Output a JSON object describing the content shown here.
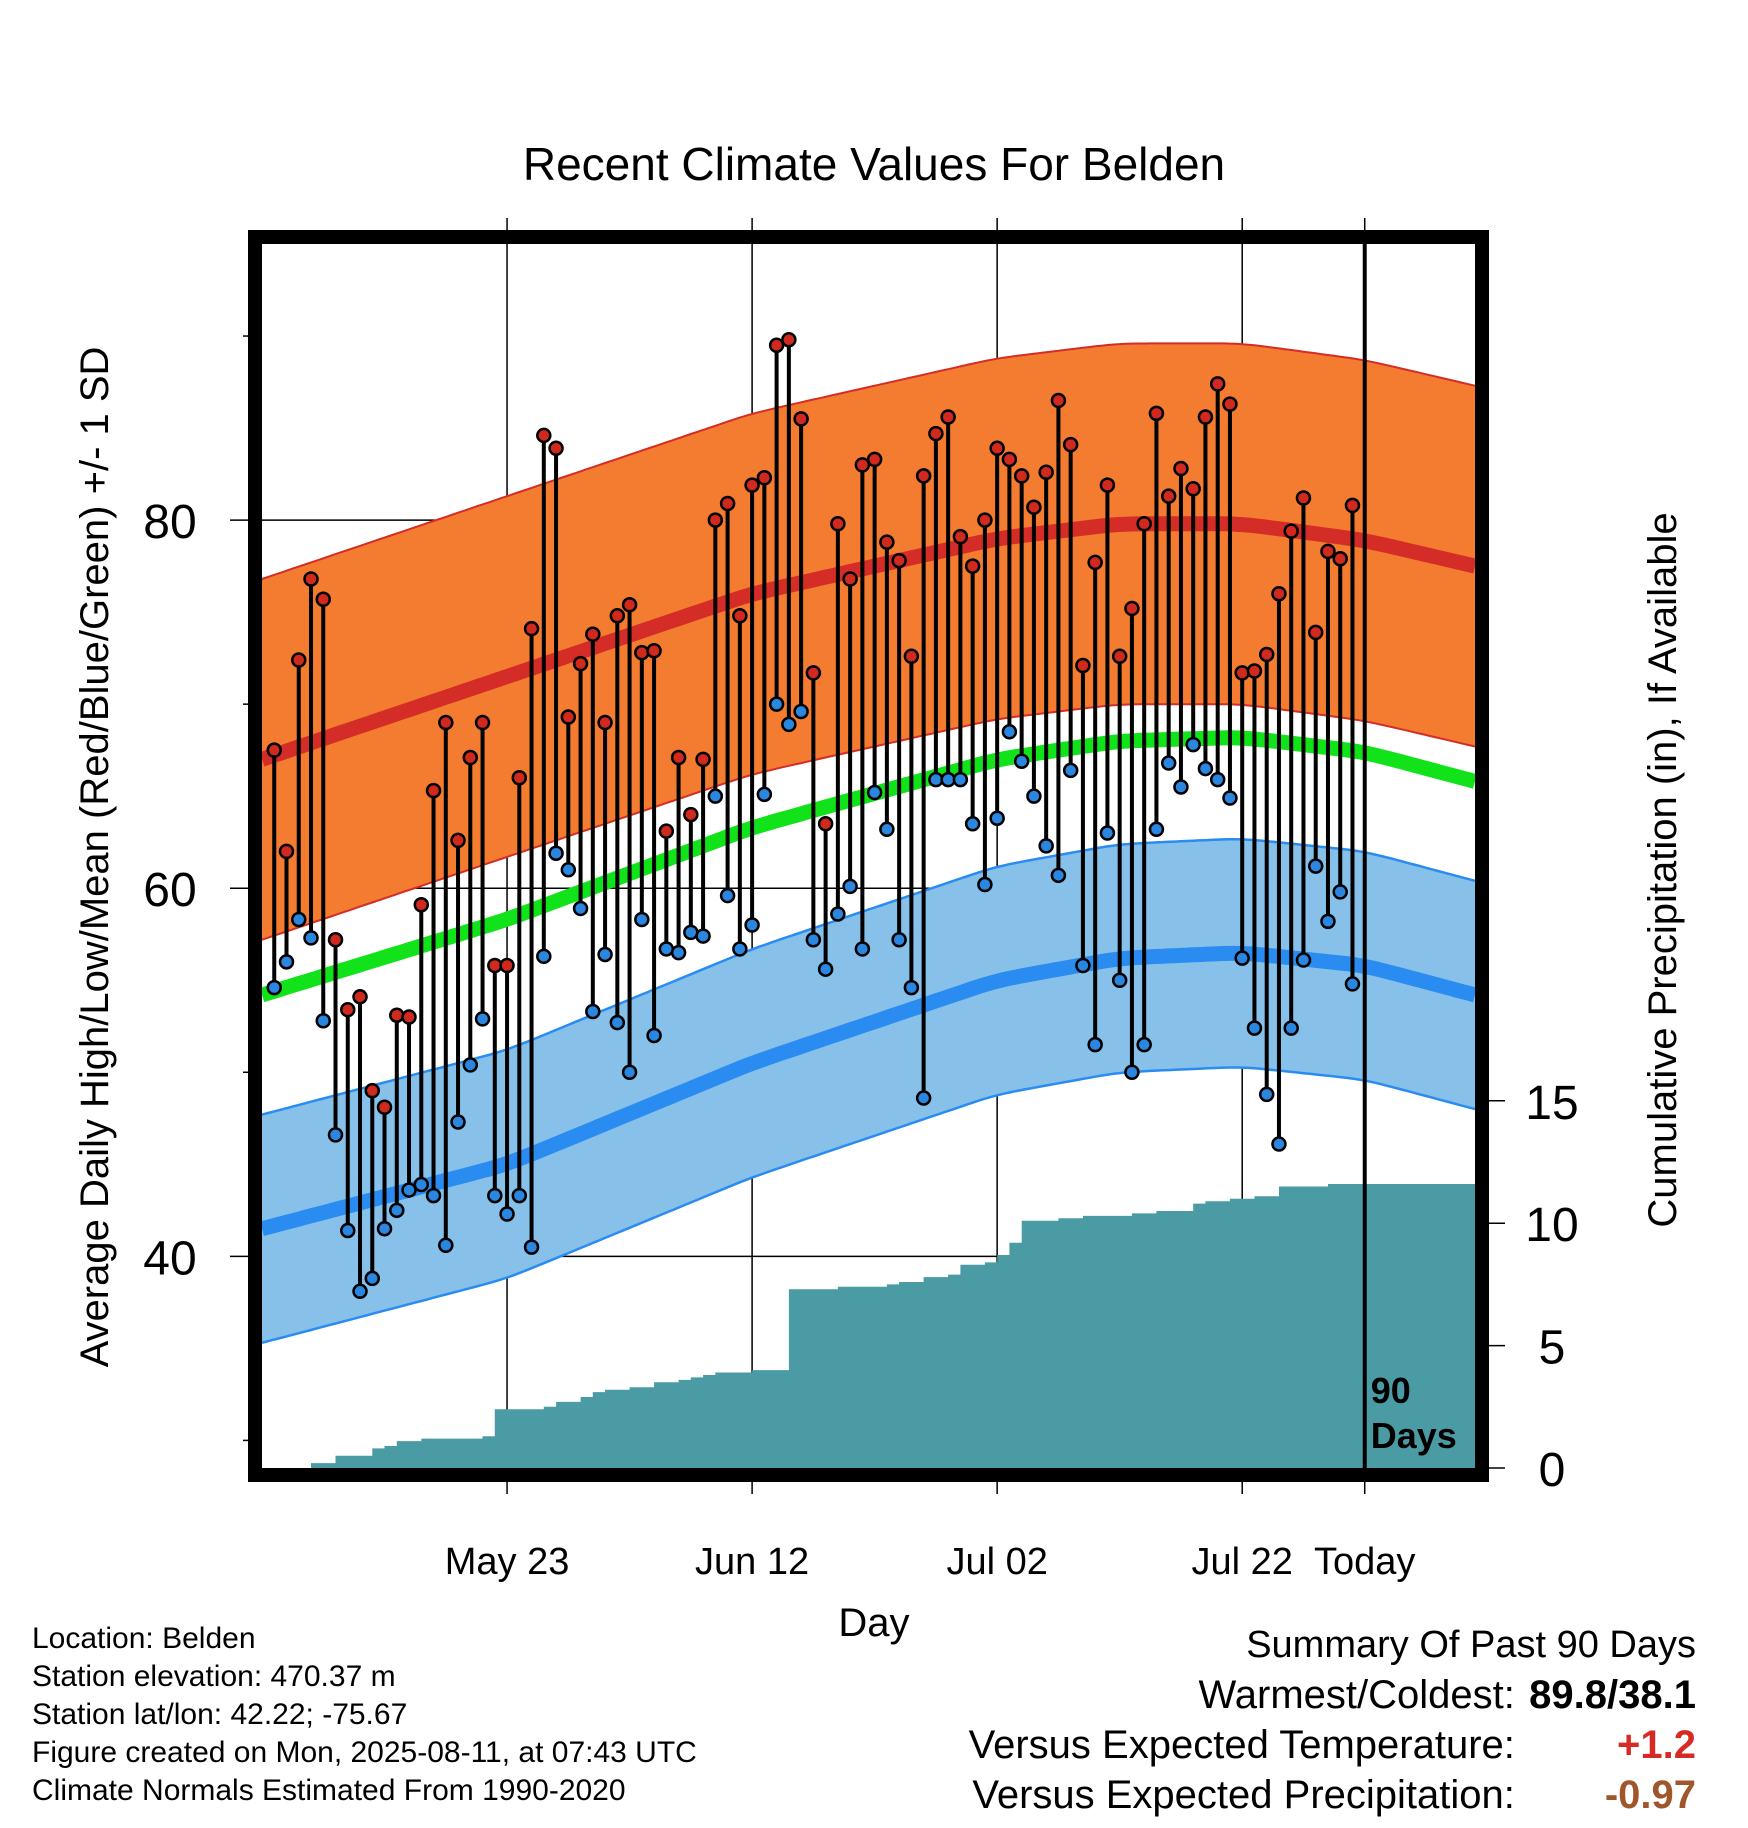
{
  "title": "Recent Climate Values For Belden",
  "ylabel_left": "Average Daily High/Low/Mean (Red/Blue/Green) +/- 1 SD",
  "ylabel_right": "Cumulative Precipitation (in), If Available",
  "xlabel": "Day",
  "x_tick_labels": [
    "May 23",
    "Jun 12",
    "Jul 02",
    "Jul 22",
    "Today"
  ],
  "days_label": "90 Days",
  "info": {
    "location": "Location: Belden",
    "elevation": "Station elevation: 470.37 m",
    "latlon": "Station lat/lon: 42.22; -75.67",
    "created": "Figure created on Mon, 2025-08-11, at 07:43 UTC",
    "normals": "Climate Normals Estimated From 1990-2020"
  },
  "summary": {
    "title": "Summary Of Past 90 Days",
    "warmest_label": "Warmest/Coldest:",
    "warmest_value": "89.8/38.1",
    "temp_label": "Versus Expected Temperature:",
    "temp_value": "+1.2",
    "precip_label": "Versus Expected Precipitation:",
    "precip_value": "-0.97"
  },
  "colors": {
    "high_band": "#f47c30",
    "high_mean": "#d42d27",
    "low_band": "#87c1e9",
    "low_mean": "#2a8cf0",
    "mean_line": "#12e21a",
    "precip": "#4a9ba4",
    "obs_high_marker": "#d02a1f",
    "obs_low_marker": "#2b86e0",
    "warm_value": "#d62b25",
    "precip_value": "#a0552a"
  },
  "chart_data": {
    "type": "line",
    "x": {
      "range_days": [
        -90,
        9
      ],
      "tick_days": [
        -70,
        -50,
        -30,
        -10,
        0
      ]
    },
    "y_left": {
      "range": [
        28.5,
        95
      ],
      "ticks_labeled": [
        40,
        60,
        80
      ],
      "ticks_minor": [
        30,
        50,
        70,
        90
      ]
    },
    "y_right": {
      "range": [
        0,
        50
      ],
      "ticks": [
        0,
        5,
        10,
        15
      ]
    },
    "grid": true,
    "normals": {
      "knot_days": [
        -90,
        -70,
        -50,
        -30,
        -20,
        -10,
        0,
        9
      ],
      "high_mean": [
        67,
        71.5,
        76,
        79,
        79.8,
        79.8,
        78.9,
        77.5
      ],
      "high_sd": 9.8,
      "low_mean": [
        41.5,
        45,
        50.5,
        55,
        56.2,
        56.5,
        55.8,
        54.2
      ],
      "low_sd": 6.2,
      "avg_mean": [
        54.2,
        58.3,
        63.3,
        67,
        68,
        68.2,
        67.4,
        65.8
      ]
    },
    "observed": {
      "days": [
        -89,
        -88,
        -87,
        -86,
        -85,
        -84,
        -83,
        -82,
        -81,
        -80,
        -79,
        -78,
        -77,
        -76,
        -75,
        -74,
        -73,
        -72,
        -71,
        -70,
        -69,
        -68,
        -67,
        -66,
        -65,
        -64,
        -63,
        -62,
        -61,
        -60,
        -59,
        -58,
        -57,
        -56,
        -55,
        -54,
        -53,
        -52,
        -51,
        -50,
        -49,
        -48,
        -47,
        -46,
        -45,
        -44,
        -43,
        -42,
        -41,
        -40,
        -39,
        -38,
        -37,
        -36,
        -35,
        -34,
        -33,
        -32,
        -31,
        -30,
        -29,
        -28,
        -27,
        -26,
        -25,
        -24,
        -23,
        -22,
        -21,
        -20,
        -19,
        -18,
        -17,
        -16,
        -15,
        -14,
        -13,
        -12,
        -11,
        -10,
        -9,
        -8,
        -7,
        -6,
        -5,
        -4,
        -3,
        -2,
        -1
      ],
      "high": [
        67.5,
        62,
        72.4,
        76.8,
        75.7,
        57.2,
        53.4,
        54.1,
        49,
        48.1,
        53.1,
        53,
        59.1,
        65.3,
        69,
        62.6,
        67.1,
        69,
        55.8,
        55.8,
        66,
        74.1,
        84.6,
        83.9,
        69.3,
        72.2,
        73.8,
        69,
        74.8,
        75.4,
        72.8,
        72.9,
        63.1,
        67.1,
        64,
        67,
        80,
        80.9,
        74.8,
        81.9,
        82.3,
        89.5,
        89.8,
        85.5,
        71.7,
        63.5,
        79.8,
        76.8,
        83,
        83.3,
        78.8,
        77.8,
        72.6,
        82.4,
        84.7,
        85.6,
        79.1,
        77.5,
        80,
        83.9,
        83.3,
        82.4,
        80.7,
        82.6,
        86.5,
        84.1,
        72.1,
        77.7,
        81.9,
        72.6,
        75.2,
        79.8,
        85.8,
        81.3,
        82.8,
        81.7,
        85.6,
        87.4,
        86.3,
        71.7,
        71.8,
        72.7,
        76,
        79.4,
        81.2,
        73.9,
        78.3,
        77.9,
        80.8
      ],
      "low": [
        54.6,
        56,
        58.3,
        57.3,
        52.8,
        46.6,
        41.4,
        38.1,
        38.8,
        41.5,
        42.5,
        43.6,
        43.9,
        43.3,
        40.6,
        47.3,
        50.4,
        52.9,
        43.3,
        42.3,
        43.3,
        40.5,
        56.3,
        61.9,
        61,
        58.9,
        53.3,
        56.4,
        52.7,
        50,
        58.3,
        52,
        56.7,
        56.5,
        57.6,
        57.4,
        65,
        59.6,
        56.7,
        58,
        65.1,
        70,
        68.9,
        69.6,
        57.2,
        55.6,
        58.6,
        60.1,
        56.7,
        65.2,
        63.2,
        57.2,
        54.6,
        48.6,
        65.9,
        65.9,
        65.9,
        63.5,
        60.2,
        63.8,
        68.5,
        66.9,
        65,
        62.3,
        60.7,
        66.4,
        55.8,
        51.5,
        63,
        55,
        50,
        51.5,
        63.2,
        66.8,
        65.5,
        67.8,
        66.5,
        65.9,
        64.9,
        56.2,
        52.4,
        48.8,
        46.1,
        52.4,
        56.1,
        61.2,
        58.2,
        59.8,
        54.8
      ]
    },
    "precip": {
      "days": [
        -90,
        -87,
        -86,
        -84,
        -83,
        -82,
        -81,
        -80,
        -79,
        -77,
        -73,
        -72,
        -71,
        -70,
        -68,
        -67,
        -66,
        -64,
        -63,
        -62,
        -60,
        -58,
        -56,
        -55,
        -54,
        -53,
        -52,
        -50,
        -48,
        -47,
        -45,
        -43,
        -40,
        -39,
        -38,
        -36,
        -35,
        -34,
        -33,
        -31,
        -30,
        -29,
        -28,
        -27,
        -25,
        -23,
        -19,
        -17,
        -15,
        -14,
        -13,
        -11,
        -9,
        -8,
        -7,
        -5,
        -3,
        -1,
        0,
        9
      ],
      "cumulative": [
        0,
        0,
        0.2,
        0.5,
        0.5,
        0.5,
        0.8,
        0.9,
        1.1,
        1.2,
        1.2,
        1.3,
        2.4,
        2.4,
        2.4,
        2.5,
        2.7,
        2.9,
        3.1,
        3.2,
        3.3,
        3.5,
        3.6,
        3.7,
        3.8,
        3.9,
        3.9,
        4.0,
        4.0,
        7.3,
        7.3,
        7.4,
        7.4,
        7.5,
        7.6,
        7.8,
        7.8,
        7.9,
        8.3,
        8.4,
        8.7,
        9.2,
        10.1,
        10.1,
        10.2,
        10.3,
        10.4,
        10.5,
        10.5,
        10.8,
        10.9,
        11.0,
        11.1,
        11.1,
        11.5,
        11.5,
        11.6,
        11.6,
        11.6,
        11.6
      ]
    }
  }
}
